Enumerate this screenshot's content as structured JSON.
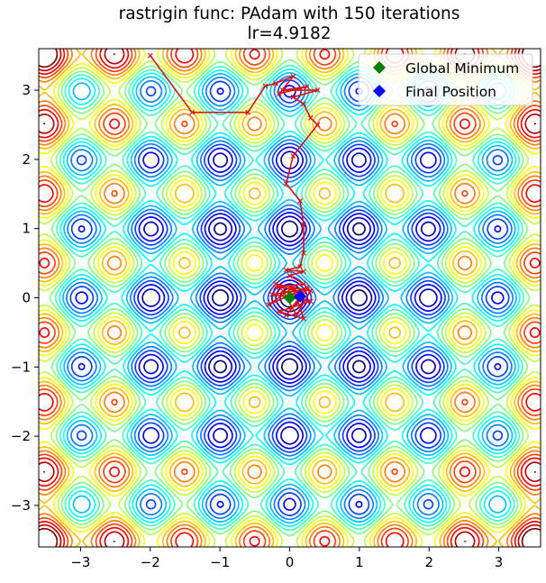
{
  "chart_data": {
    "type": "contour",
    "title": "rastrigin func: PAdam with 150 iterations",
    "subtitle": "lr=4.9182",
    "xlabel": "",
    "ylabel": "",
    "xlim": [
      -3.6,
      3.6
    ],
    "ylim": [
      -3.6,
      3.6
    ],
    "xticks": [
      -3,
      -2,
      -1,
      0,
      1,
      2,
      3
    ],
    "yticks": [
      -3,
      -2,
      -1,
      0,
      1,
      2,
      3
    ],
    "x_tick_labels": [
      "−3",
      "−2",
      "−1",
      "0",
      "1",
      "2",
      "3"
    ],
    "y_tick_labels": [
      "−3",
      "−2",
      "−1",
      "0",
      "1",
      "2",
      "3"
    ],
    "grid": false,
    "colormap": [
      "#00007f",
      "#0000ff",
      "#007fff",
      "#00ffff",
      "#7fff7f",
      "#ffff00",
      "#ff7f00",
      "#ff0000",
      "#7f0000"
    ],
    "legend": {
      "placement": "top-right",
      "entries": [
        {
          "label": "Global Minimum",
          "marker": "diamond",
          "color": "#008000"
        },
        {
          "label": "Final Position",
          "marker": "diamond",
          "color": "#0000ff"
        }
      ]
    },
    "global_minimum": {
      "x": 0,
      "y": 0
    },
    "final_position": {
      "x": 0.15,
      "y": 0.02
    },
    "path_color": "#dd1111",
    "path": [
      [
        -2.0,
        3.5
      ],
      [
        -1.4,
        2.68
      ],
      [
        -0.6,
        2.68
      ],
      [
        -0.35,
        3.06
      ],
      [
        -0.2,
        3.1
      ],
      [
        0.05,
        3.2
      ],
      [
        -0.15,
        2.95
      ],
      [
        0.25,
        3.05
      ],
      [
        -0.1,
        3.0
      ],
      [
        0.4,
        3.0
      ],
      [
        0.05,
        2.9
      ],
      [
        0.2,
        2.8
      ],
      [
        0.3,
        2.6
      ],
      [
        0.4,
        2.5
      ],
      [
        0.05,
        2.05
      ],
      [
        -0.05,
        1.65
      ],
      [
        0.15,
        1.4
      ],
      [
        0.2,
        1.05
      ],
      [
        0.2,
        0.65
      ],
      [
        0.15,
        0.45
      ],
      [
        -0.05,
        0.4
      ],
      [
        0.2,
        0.38
      ],
      [
        0.0,
        0.32
      ],
      [
        0.2,
        0.2
      ],
      [
        -0.2,
        0.15
      ],
      [
        0.25,
        0.12
      ],
      [
        -0.25,
        0.05
      ],
      [
        0.3,
        -0.05
      ],
      [
        -0.15,
        -0.2
      ],
      [
        0.2,
        -0.3
      ],
      [
        0.05,
        0.15
      ],
      [
        -0.3,
        -0.1
      ],
      [
        0.25,
        0.15
      ],
      [
        -0.05,
        -0.25
      ],
      [
        0.2,
        0.05
      ],
      [
        -0.2,
        0.2
      ],
      [
        0.3,
        0.1
      ],
      [
        0.1,
        -0.25
      ],
      [
        -0.1,
        0.1
      ],
      [
        0.15,
        0.02
      ]
    ]
  }
}
